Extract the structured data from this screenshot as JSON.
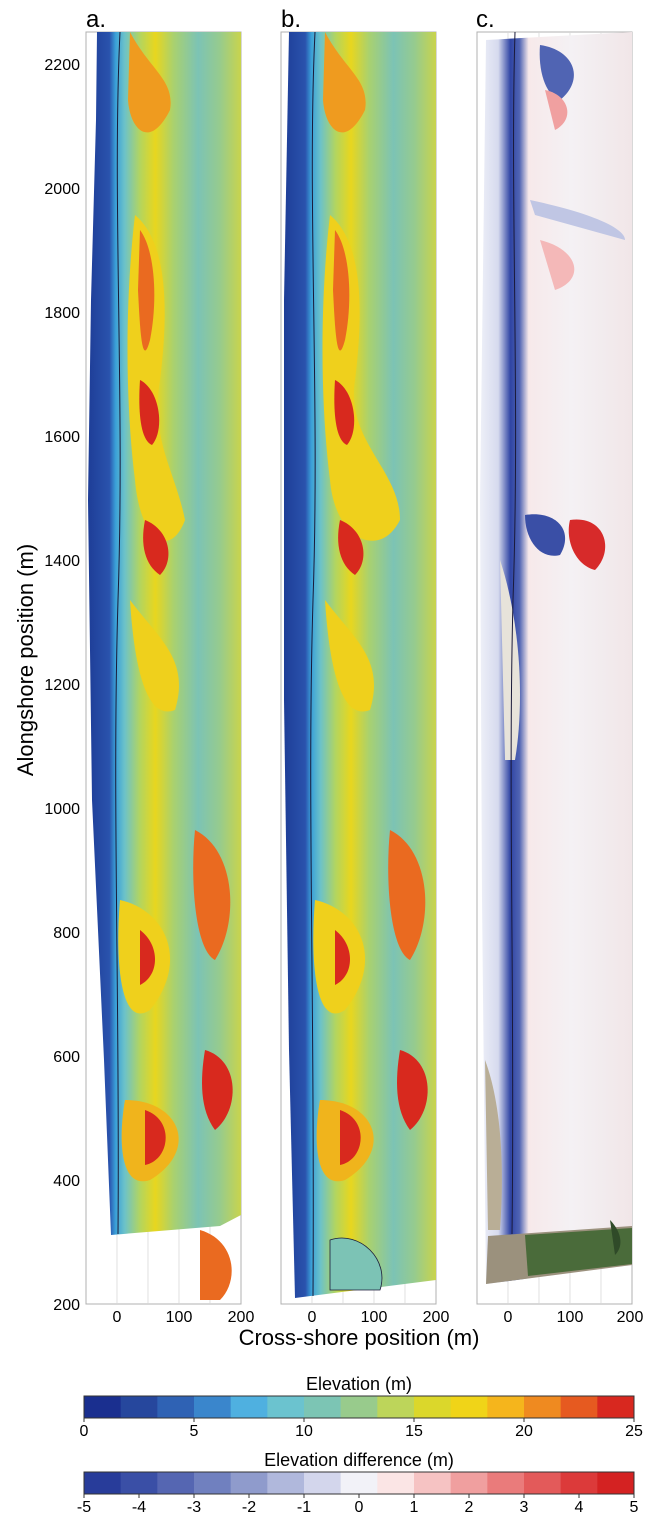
{
  "figure": {
    "panel_labels": [
      "a.",
      "b.",
      "c."
    ],
    "y_axis_label": "Alongshore position (m)",
    "x_axis_label": "Cross-shore position (m)",
    "y_ticks": [
      "200",
      "400",
      "600",
      "800",
      "1000",
      "1200",
      "1400",
      "1600",
      "1800",
      "2000",
      "2200"
    ],
    "x_ticks": [
      "0",
      "100",
      "200"
    ]
  },
  "chart_data": {
    "type": "heatmap",
    "panels": [
      {
        "label": "a.",
        "variable": "Elevation",
        "alongshore_range": [
          310,
          2250
        ]
      },
      {
        "label": "b.",
        "variable": "Elevation",
        "alongshore_range": [
          210,
          2250
        ]
      },
      {
        "label": "c.",
        "variable": "Elevation difference",
        "alongshore_range": [
          230,
          2250
        ]
      }
    ],
    "xlabel": "Cross-shore position (m)",
    "ylabel": "Alongshore position (m)",
    "xlim": [
      -50,
      200
    ],
    "ylim": [
      200,
      2250
    ],
    "x_ticks": [
      0,
      100,
      200
    ],
    "y_ticks": [
      200,
      400,
      600,
      800,
      1000,
      1200,
      1400,
      1600,
      1800,
      2000,
      2200
    ],
    "grid": true
  },
  "colorbars": [
    {
      "title": "Elevation (m)",
      "range": [
        0,
        25
      ],
      "tick_values": [
        0,
        5,
        10,
        15,
        20,
        25
      ],
      "tick_labels": [
        "0",
        "5",
        "10",
        "15",
        "20",
        "25"
      ],
      "colors": [
        "#1a2f8f",
        "#26479d",
        "#2f62b4",
        "#3a86cc",
        "#4fb0e0",
        "#6bc3cf",
        "#7cc5b4",
        "#98cb8c",
        "#bdd55a",
        "#dbd72b",
        "#f0d418",
        "#f5b51c",
        "#ef8a20",
        "#e65a20",
        "#d8281f"
      ]
    },
    {
      "title": "Elevation difference (m)",
      "range": [
        -5,
        5
      ],
      "tick_values": [
        -5,
        -4,
        -3,
        -2,
        -1,
        0,
        1,
        2,
        3,
        4,
        5
      ],
      "tick_labels": [
        "-5",
        "-4",
        "-3",
        "-2",
        "-1",
        "0",
        "1",
        "2",
        "3",
        "4",
        "5"
      ],
      "colors": [
        "#283c9a",
        "#3a4fa6",
        "#5566b2",
        "#7080bf",
        "#8f9bcc",
        "#b0b8dc",
        "#d3d6ec",
        "#f2f2f8",
        "#fbe5e5",
        "#f6c3c3",
        "#f09f9f",
        "#ea7b7b",
        "#e35a5a",
        "#dc3a3a",
        "#d42222"
      ]
    }
  ],
  "colors": {
    "ocean": "#1e3d97",
    "beach": "#3aa0d8",
    "vegetation_plain": "#7cc3b5",
    "dune": "#f0d21c",
    "dune_high": "#ef7d1f",
    "dune_peak": "#d9291e",
    "diff_erosion": "#2f44a4",
    "diff_accretion": "#d72a2a",
    "photo_sand": "#b9ae96",
    "photo_veg": "#4a6b3a"
  }
}
